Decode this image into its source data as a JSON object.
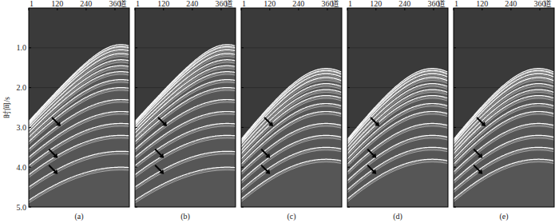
{
  "chart_data": [
    {
      "type": "wiggle",
      "title": "(a)",
      "x_label": "道",
      "y_label": "时间/s",
      "xlim": [
        1,
        420
      ],
      "xticks": [
        1,
        120,
        240,
        360
      ],
      "ylim": [
        0,
        5
      ],
      "yticks": [
        {
          "value": 1,
          "label": "1.0"
        },
        {
          "value": 2,
          "label": "2.0"
        },
        {
          "value": 3,
          "label": "3.0"
        },
        {
          "value": 4,
          "label": "4.0"
        },
        {
          "value": 5,
          "label": "5.0"
        }
      ],
      "events": {
        "apex_trace": 385,
        "apex_time": [
          0.92,
          0.97,
          1.05,
          1.15,
          1.3,
          1.45,
          1.6,
          1.8,
          2.0,
          2.3,
          2.6,
          2.9,
          3.2,
          3.6,
          4.0
        ],
        "time_at_trace_1": [
          2.85,
          2.87,
          2.9,
          2.94,
          3.0,
          3.07,
          3.14,
          3.25,
          3.36,
          3.55,
          3.75,
          3.96,
          4.19,
          4.5,
          4.83
        ]
      }
    },
    {
      "type": "wiggle",
      "title": "(b)",
      "x_label": "道",
      "tick_labels": "x",
      "xlim": [
        1,
        420
      ],
      "xticks": [
        1,
        120,
        240,
        360
      ],
      "ylim": [
        0,
        5
      ],
      "yticks": [
        {
          "value": 1,
          "label": "1.0"
        },
        {
          "value": 2,
          "label": "2.0"
        },
        {
          "value": 3,
          "label": "3.0"
        },
        {
          "value": 4,
          "label": "4.0"
        },
        {
          "value": 5,
          "label": "5.0"
        }
      ],
      "events": {
        "apex_trace": 385,
        "apex_time": [
          0.92,
          0.97,
          1.05,
          1.15,
          1.3,
          1.45,
          1.6,
          1.8,
          2.0,
          2.3,
          2.6,
          2.9,
          3.2,
          3.6,
          4.0
        ],
        "time_at_trace_1": [
          2.85,
          2.87,
          2.9,
          2.94,
          3.0,
          3.07,
          3.14,
          3.25,
          3.36,
          3.55,
          3.75,
          3.96,
          4.19,
          4.5,
          4.83
        ]
      }
    },
    {
      "type": "wiggle",
      "title": "(c)",
      "x_label": "道",
      "tick_labels": "x",
      "xlim": [
        1,
        420
      ],
      "xticks": [
        1,
        120,
        240,
        360
      ],
      "ylim": [
        0,
        5
      ],
      "yticks": [
        {
          "value": 1,
          "label": "1.0"
        },
        {
          "value": 2,
          "label": "2.0"
        },
        {
          "value": 3,
          "label": "3.0"
        },
        {
          "value": 4,
          "label": "4.0"
        },
        {
          "value": 5,
          "label": "5.0"
        }
      ],
      "events": {
        "apex_trace": 355,
        "apex_time": [
          1.52,
          1.57,
          1.65,
          1.75,
          1.9,
          2.05,
          2.2,
          2.4,
          2.6,
          2.9,
          3.2,
          3.5,
          3.8
        ],
        "time_at_trace_1": [
          3.3,
          3.33,
          3.36,
          3.41,
          3.49,
          3.58,
          3.66,
          3.79,
          3.92,
          4.12,
          4.34,
          4.57,
          4.8
        ]
      }
    },
    {
      "type": "wiggle",
      "title": "(d)",
      "x_label": "道",
      "tick_labels": "x",
      "xlim": [
        1,
        420
      ],
      "xticks": [
        1,
        120,
        240,
        360
      ],
      "ylim": [
        0,
        5
      ],
      "yticks": [
        {
          "value": 1,
          "label": "1.0"
        },
        {
          "value": 2,
          "label": "2.0"
        },
        {
          "value": 3,
          "label": "3.0"
        },
        {
          "value": 4,
          "label": "4.0"
        },
        {
          "value": 5,
          "label": "5.0"
        }
      ],
      "events": {
        "apex_trace": 355,
        "apex_time": [
          1.52,
          1.57,
          1.65,
          1.75,
          1.9,
          2.05,
          2.2,
          2.4,
          2.6,
          2.9,
          3.2,
          3.5,
          3.8
        ],
        "time_at_trace_1": [
          3.3,
          3.33,
          3.36,
          3.41,
          3.49,
          3.58,
          3.66,
          3.79,
          3.92,
          4.12,
          4.34,
          4.57,
          4.8
        ]
      }
    },
    {
      "type": "wiggle",
      "title": "(e)",
      "x_label": "道",
      "tick_labels": "x",
      "xlim": [
        1,
        420
      ],
      "xticks": [
        1,
        120,
        240,
        360
      ],
      "ylim": [
        0,
        5
      ],
      "yticks": [
        {
          "value": 1,
          "label": "1.0"
        },
        {
          "value": 2,
          "label": "2.0"
        },
        {
          "value": 3,
          "label": "3.0"
        },
        {
          "value": 4,
          "label": "4.0"
        },
        {
          "value": 5,
          "label": "5.0"
        }
      ],
      "events": {
        "apex_trace": 355,
        "apex_time": [
          1.52,
          1.57,
          1.65,
          1.75,
          1.9,
          2.05,
          2.2,
          2.4,
          2.6,
          2.9,
          3.2,
          3.5,
          3.8
        ],
        "time_at_trace_1": [
          3.3,
          3.33,
          3.36,
          3.41,
          3.49,
          3.58,
          3.66,
          3.79,
          3.92,
          4.12,
          4.34,
          4.57,
          4.8
        ]
      }
    }
  ]
}
